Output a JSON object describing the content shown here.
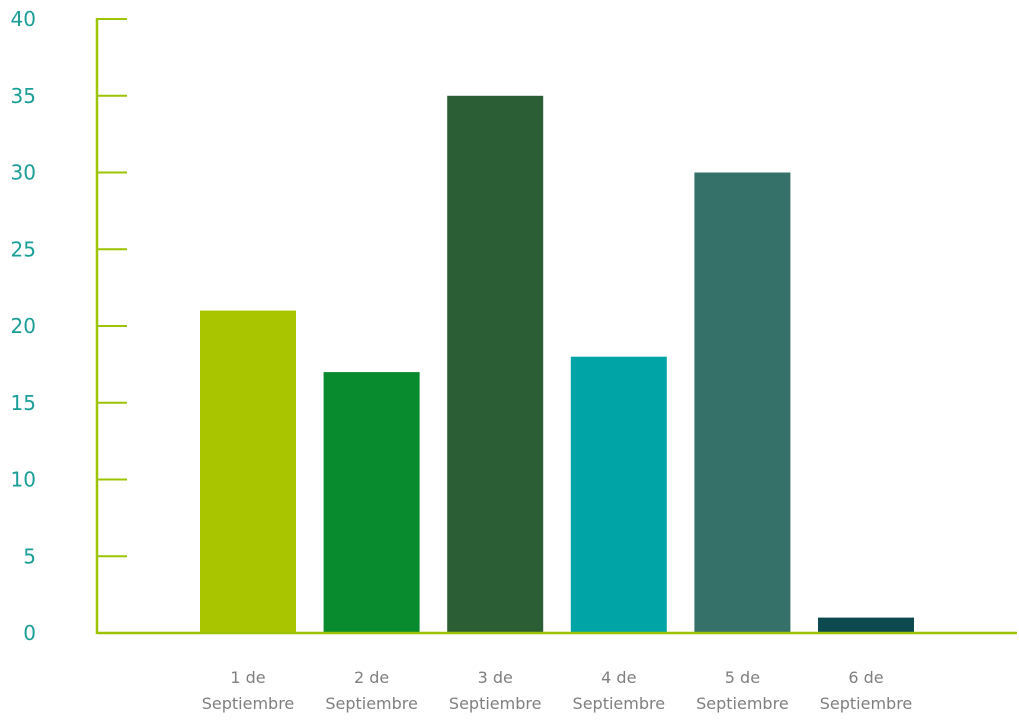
{
  "chart_data": {
    "type": "bar",
    "title": "",
    "xlabel": "",
    "ylabel": "",
    "categories": [
      [
        "1 de",
        "Septiembre"
      ],
      [
        "2 de",
        "Septiembre"
      ],
      [
        "3 de",
        "Septiembre"
      ],
      [
        "4 de",
        "Septiembre"
      ],
      [
        "5 de",
        "Septiembre"
      ],
      [
        "6 de",
        "Septiembre"
      ]
    ],
    "values": [
      21,
      17,
      35,
      18,
      30,
      1
    ],
    "bar_colors": [
      "#a8c500",
      "#088a2e",
      "#2c5e35",
      "#00a4a6",
      "#367169",
      "#0c4a50"
    ],
    "ylim": [
      0,
      40
    ],
    "yticks": [
      "0",
      "5",
      "10",
      "15",
      "20",
      "25",
      "30",
      "35",
      "40"
    ],
    "axis_color": "#9cc400",
    "tick_label_color": "#1a9e96",
    "grid": false,
    "legend": "none"
  }
}
